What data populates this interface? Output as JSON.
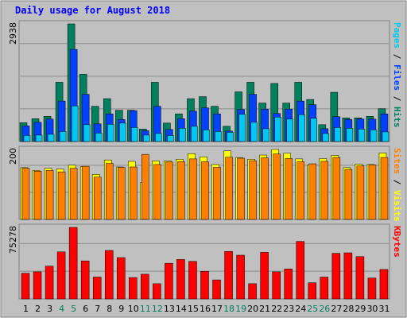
{
  "chart_data": {
    "title": "Daily usage for August 2018",
    "days": [
      "1",
      "2",
      "3",
      "4",
      "5",
      "6",
      "7",
      "8",
      "9",
      "10",
      "11",
      "12",
      "13",
      "14",
      "15",
      "16",
      "17",
      "18",
      "19",
      "20",
      "21",
      "22",
      "23",
      "24",
      "25",
      "26",
      "27",
      "28",
      "29",
      "30",
      "31"
    ],
    "weekend_days": [
      "4",
      "5",
      "11",
      "12",
      "18",
      "19",
      "25",
      "26"
    ],
    "colors": {
      "background": "#ffffff",
      "panel": "#c0c0c0",
      "title": "#0000ff",
      "tick": "#000000",
      "weekend_tick": "#00805c",
      "hits": "#00805c",
      "files": "#0040ff",
      "pages": "#00c8f0",
      "visits": "#ffff00",
      "sites": "#ff8000",
      "kbytes": "#ff0000"
    },
    "panels": [
      {
        "type": "bar",
        "ymax_label": "2938",
        "ymax": 2938,
        "side_labels": [
          {
            "text": "Pages",
            "color": "#00c8f0"
          },
          {
            "text": " / ",
            "color": "#000000"
          },
          {
            "text": "Files",
            "color": "#0040ff"
          },
          {
            "text": " / ",
            "color": "#000000"
          },
          {
            "text": "Hits",
            "color": "#00805c"
          }
        ],
        "series": [
          {
            "name": "Hits",
            "color": "#00805c",
            "values": [
              470,
              570,
              630,
              1480,
              2938,
              1680,
              880,
              1070,
              780,
              780,
              310,
              1480,
              460,
              690,
              1070,
              1120,
              880,
              380,
              1240,
              1480,
              960,
              1450,
              960,
              1480,
              1050,
              420,
              1230,
              590,
              590,
              630,
              820
            ]
          },
          {
            "name": "Files",
            "color": "#0040ff",
            "values": [
              390,
              480,
              560,
              1010,
              2300,
              1180,
              440,
              690,
              550,
              770,
              270,
              880,
              300,
              570,
              760,
              840,
              690,
              260,
              800,
              1180,
              810,
              700,
              810,
              1010,
              920,
              320,
              620,
              550,
              560,
              560,
              690
            ]
          },
          {
            "name": "Pages",
            "color": "#00c8f0",
            "values": [
              150,
              160,
              180,
              250,
              890,
              420,
              210,
              430,
              460,
              350,
              160,
              200,
              150,
              330,
              380,
              290,
              250,
              230,
              680,
              480,
              320,
              610,
              560,
              670,
              580,
              200,
              350,
              330,
              310,
              290,
              240
            ]
          }
        ]
      },
      {
        "type": "bar",
        "ymax_label": "200",
        "ymax": 200,
        "side_labels": [
          {
            "text": "Sites",
            "color": "#ff8000"
          },
          {
            "text": " / ",
            "color": "#000000"
          },
          {
            "text": "Visits",
            "color": "#ffff00"
          }
        ],
        "series": [
          {
            "name": "Visits",
            "color": "#ffff00",
            "values": [
              148,
              140,
              146,
              144,
              155,
              151,
              129,
              170,
              150,
              166,
              105,
              167,
              167,
              172,
              188,
              179,
              157,
              196,
              177,
              172,
              184,
              200,
              189,
              173,
              156,
              174,
              183,
              148,
              158,
              157,
              190
            ]
          },
          {
            "name": "Sites",
            "color": "#ff8000",
            "values": [
              146,
              138,
              140,
              136,
              146,
              152,
              121,
              160,
              149,
              150,
              186,
              157,
              164,
              165,
              173,
              165,
              149,
              178,
              175,
              168,
              176,
              187,
              174,
              165,
              159,
              166,
              177,
              143,
              153,
              156,
              177
            ]
          }
        ]
      },
      {
        "type": "bar",
        "ymax_label": "75278",
        "ymax": 75278,
        "side_labels": [
          {
            "text": "KBytes",
            "color": "#ff0000"
          }
        ],
        "series": [
          {
            "name": "KBytes",
            "color": "#ff0000",
            "values": [
              27000,
              28500,
              34500,
              49500,
              75278,
              40000,
              23000,
              51000,
              43500,
              22500,
              26000,
              16000,
              37500,
              41500,
              39500,
              29000,
              20000,
              50000,
              46000,
              16000,
              49000,
              28500,
              31500,
              60500,
              17000,
              23000,
              48000,
              48500,
              44500,
              22000,
              31000
            ]
          }
        ]
      }
    ]
  }
}
